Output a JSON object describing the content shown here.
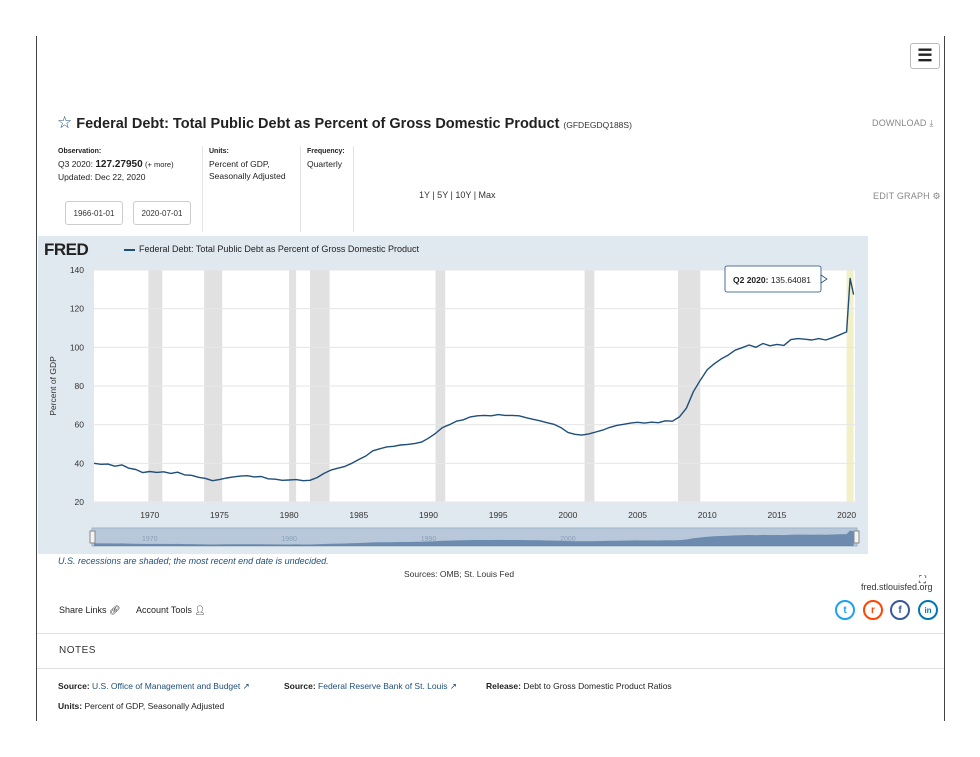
{
  "header": {
    "title": "Federal Debt: Total Public Debt as Percent of Gross Domestic Product",
    "series_id": "(GFDEGDQ188S)",
    "download_label": "DOWNLOAD",
    "edit_graph_label": "EDIT GRAPH"
  },
  "meta": {
    "observation_label": "Observation:",
    "observation_period": "Q3 2020:",
    "observation_value": "127.27950",
    "observation_more": "(+ more)",
    "updated": "Updated: Dec 22, 2020",
    "units_label": "Units:",
    "units_line1": "Percent of GDP,",
    "units_line2": "Seasonally Adjusted",
    "frequency_label": "Frequency:",
    "frequency_value": "Quarterly"
  },
  "controls": {
    "start_date": "1966-01-01",
    "end_date": "2020-07-01",
    "ranges": "1Y | 5Y | 10Y | Max"
  },
  "chart_data": {
    "type": "line",
    "logo": "FRED",
    "legend": "Federal Debt: Total Public Debt as Percent of Gross Domestic Product",
    "ylabel": "Percent of GDP",
    "ylim": [
      20,
      140
    ],
    "xlim": [
      1966,
      2020.6
    ],
    "yticks": [
      20,
      40,
      60,
      80,
      100,
      120,
      140
    ],
    "xticks": [
      1970,
      1975,
      1980,
      1985,
      1990,
      1995,
      2000,
      2005,
      2010,
      2015,
      2020
    ],
    "navigator_labels": [
      "1970",
      "1980",
      "1990",
      "2000"
    ],
    "recessions": [
      [
        1969.9,
        1970.9
      ],
      [
        1973.9,
        1975.2
      ],
      [
        1980.0,
        1980.5
      ],
      [
        1981.5,
        1982.9
      ],
      [
        1990.5,
        1991.2
      ],
      [
        2001.2,
        2001.9
      ],
      [
        2007.9,
        2009.5
      ],
      [
        2020.0,
        2020.5
      ]
    ],
    "tooltip": {
      "label": "Q2 2020:",
      "value": "135.64081"
    },
    "x": [
      1966.0,
      1966.5,
      1967.0,
      1967.5,
      1968.0,
      1968.5,
      1969.0,
      1969.5,
      1970.0,
      1970.5,
      1971.0,
      1971.5,
      1972.0,
      1972.5,
      1973.0,
      1973.5,
      1974.0,
      1974.5,
      1975.0,
      1975.5,
      1976.0,
      1976.5,
      1977.0,
      1977.5,
      1978.0,
      1978.5,
      1979.0,
      1979.5,
      1980.0,
      1980.5,
      1981.0,
      1981.5,
      1982.0,
      1982.5,
      1983.0,
      1983.5,
      1984.0,
      1984.5,
      1985.0,
      1985.5,
      1986.0,
      1986.5,
      1987.0,
      1987.5,
      1988.0,
      1988.5,
      1989.0,
      1989.5,
      1990.0,
      1990.5,
      1991.0,
      1991.5,
      1992.0,
      1992.5,
      1993.0,
      1993.5,
      1994.0,
      1994.5,
      1995.0,
      1995.5,
      1996.0,
      1996.5,
      1997.0,
      1997.5,
      1998.0,
      1998.5,
      1999.0,
      1999.5,
      2000.0,
      2000.5,
      2001.0,
      2001.5,
      2002.0,
      2002.5,
      2003.0,
      2003.5,
      2004.0,
      2004.5,
      2005.0,
      2005.5,
      2006.0,
      2006.5,
      2007.0,
      2007.5,
      2008.0,
      2008.5,
      2009.0,
      2009.5,
      2010.0,
      2010.5,
      2011.0,
      2011.5,
      2012.0,
      2012.5,
      2013.0,
      2013.5,
      2014.0,
      2014.5,
      2015.0,
      2015.5,
      2016.0,
      2016.5,
      2017.0,
      2017.5,
      2018.0,
      2018.5,
      2019.0,
      2019.5,
      2020.0,
      2020.25,
      2020.5
    ],
    "y": [
      40.0,
      39.5,
      39.6,
      38.5,
      39.2,
      37.5,
      36.8,
      35.2,
      35.8,
      35.3,
      35.6,
      34.8,
      35.4,
      34.0,
      33.8,
      32.8,
      32.2,
      31.0,
      31.6,
      32.4,
      33.0,
      33.4,
      33.6,
      33.0,
      33.2,
      32.0,
      31.8,
      31.2,
      31.4,
      31.6,
      31.0,
      31.2,
      32.6,
      34.8,
      36.5,
      37.5,
      38.4,
      40.0,
      42.0,
      43.8,
      46.5,
      47.5,
      48.5,
      48.8,
      49.5,
      49.8,
      50.2,
      51.0,
      53.0,
      55.5,
      58.5,
      60.0,
      61.8,
      62.5,
      64.0,
      64.6,
      64.8,
      64.6,
      65.2,
      64.8,
      64.8,
      64.6,
      63.6,
      62.8,
      62.0,
      61.0,
      60.2,
      58.5,
      56.0,
      55.0,
      54.6,
      55.2,
      56.2,
      57.2,
      58.6,
      59.6,
      60.2,
      60.8,
      61.2,
      60.8,
      61.3,
      61.0,
      62.0,
      61.8,
      64.0,
      68.5,
      77.0,
      83.0,
      88.5,
      91.5,
      94.0,
      96.0,
      98.5,
      99.8,
      101.2,
      100.0,
      102.0,
      100.8,
      101.5,
      101.0,
      104.0,
      104.5,
      104.2,
      103.8,
      104.5,
      103.8,
      105.0,
      106.5,
      108.0,
      135.64,
      127.28
    ]
  },
  "chart_footer": {
    "recession_note": "U.S. recessions are shaded; the most recent end date is undecided.",
    "sources": "Sources: OMB; St. Louis Fed",
    "url": "fred.stlouisfed.org"
  },
  "toolbar": {
    "share_links": "Share Links",
    "account_tools": "Account Tools"
  },
  "social": [
    {
      "name": "twitter",
      "glyph": "t",
      "color": "#1da1f2"
    },
    {
      "name": "reddit",
      "glyph": "r",
      "color": "#ff4500"
    },
    {
      "name": "facebook",
      "glyph": "f",
      "color": "#3b5998"
    },
    {
      "name": "linkedin",
      "glyph": "in",
      "color": "#0077b5"
    }
  ],
  "notes": {
    "heading": "NOTES",
    "source_label": "Source:",
    "source1": "U.S. Office of Management and Budget",
    "source2": "Federal Reserve Bank of St. Louis",
    "release_label": "Release:",
    "release_value": "Debt to Gross Domestic Product Ratios",
    "units_label": "Units:",
    "units_value": "Percent of GDP, Seasonally Adjusted"
  }
}
